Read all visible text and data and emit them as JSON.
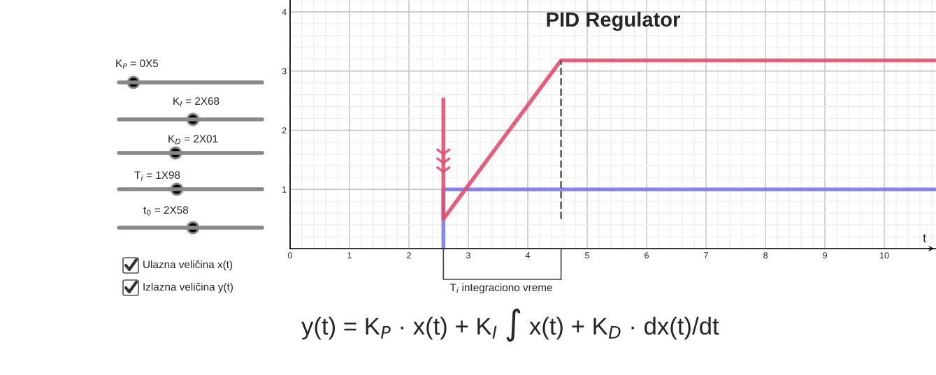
{
  "chart_data": {
    "type": "line",
    "title": "PID Regulator",
    "xlabel": "t",
    "series": [
      {
        "color": "#7b7bf0",
        "x": [
          2.58,
          2.58,
          10.87
        ],
        "values": [
          0,
          1,
          1
        ]
      },
      {
        "color": "#e0506e",
        "x": [
          2.58,
          2.58,
          4.56,
          10.87
        ],
        "values": [
          2.52,
          0.5,
          3.18,
          3.18
        ]
      },
      {
        "color": "#555555",
        "line_style": "dashed",
        "x": [
          4.56,
          4.56
        ],
        "values": [
          0.5,
          3.18
        ]
      }
    ],
    "xlim": [
      0,
      10.87
    ],
    "ylim": [
      0,
      4.2
    ],
    "xticks": [
      0,
      1,
      2,
      3,
      4,
      5,
      6,
      7,
      8,
      9,
      10
    ],
    "yticks": [
      {
        "value": 0,
        "label": null
      },
      1,
      2,
      3,
      4
    ],
    "grid": true,
    "legend": false,
    "marker": "none",
    "annotations": [
      "K$_{P}$ = 0X5",
      "K$_{I}$ = 2X68",
      "K$_{D}$ = 2X01",
      "T$_{i}$ = 1X98",
      "t$_{0}$ = 2X58",
      "Ulazna veličina x(t)",
      "Izlazna veličina y(t)",
      "T$_{i}$ integraciono vreme",
      "y(t) = K$_{P}$ · x(t) + K$_{I}$ ∫ x(t) + K$_{D}$ · dx(t)/dt"
    ]
  }
}
